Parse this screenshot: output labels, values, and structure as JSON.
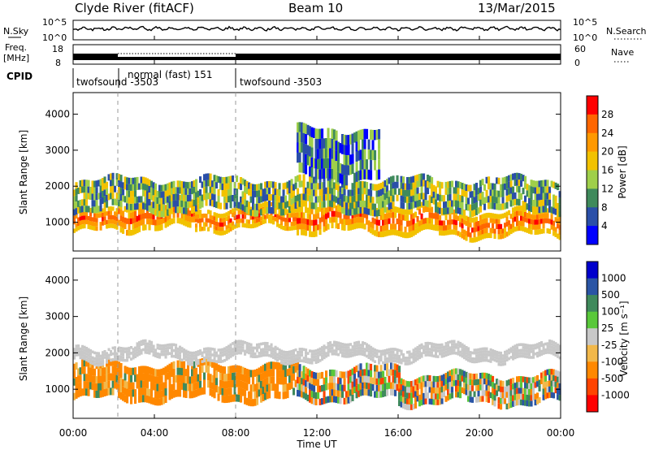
{
  "header": {
    "station": "Clyde River (fitACF)",
    "beam": "Beam 10",
    "date": "13/Mar/2015"
  },
  "top_strip": {
    "left_label": "N.Sky",
    "right_label": "N.Search",
    "scale_top": "10^5",
    "scale_bottom": "10^0"
  },
  "freq_strip": {
    "left_label_1": "Freq.",
    "left_label_2": "[MHz]",
    "left_ticks": [
      "18",
      "8"
    ],
    "right_label": "Nave",
    "right_ticks": [
      "60",
      "0"
    ]
  },
  "cpid": {
    "label": "CPID",
    "segments": [
      {
        "text": "twofsound -3503",
        "start_hour": 0
      },
      {
        "text": "normal (fast) 151",
        "start_hour": 2.2
      },
      {
        "text": "twofsound -3503",
        "start_hour": 8.0
      }
    ]
  },
  "colors": {
    "power_scale": [
      "#0000ff",
      "#2a4fa8",
      "#3f8a5c",
      "#9fcf4a",
      "#f2c200",
      "#ff9900",
      "#ff6600",
      "#ff0000"
    ],
    "velocity_scale": [
      "#0000cc",
      "#2a55a5",
      "#3f8a5c",
      "#59c83a",
      "#c8c8c8",
      "#f2b84a",
      "#ff8800",
      "#ff4400",
      "#ff0000"
    ]
  },
  "chart_data": [
    {
      "type": "heatmap",
      "name": "power",
      "xlabel": "",
      "ylabel": "Slant Range [km]",
      "x_ticks": [
        "00:00",
        "04:00",
        "08:00",
        "12:00",
        "16:00",
        "20:00",
        "00:00"
      ],
      "x_range_hours": [
        0,
        24
      ],
      "y_ticks": [
        1000,
        2000,
        3000,
        4000
      ],
      "ylim": [
        200,
        4600
      ],
      "colorbar": {
        "label": "Power [dB]",
        "ticks": [
          "4",
          "8",
          "12",
          "16",
          "20",
          "24",
          "28"
        ],
        "range": [
          0,
          32
        ]
      },
      "bands": [
        {
          "hours": [
            0,
            2.2
          ],
          "range_km": [
            700,
            1300
          ],
          "level": "high"
        },
        {
          "hours": [
            2.2,
            6
          ],
          "range_km": [
            800,
            1600
          ],
          "level": "high"
        },
        {
          "hours": [
            6,
            11
          ],
          "range_km": [
            800,
            1400
          ],
          "level": "high"
        },
        {
          "hours": [
            11,
            18
          ],
          "range_km": [
            700,
            1500
          ],
          "level": "high"
        },
        {
          "hours": [
            18,
            24
          ],
          "range_km": [
            600,
            1300
          ],
          "level": "high"
        },
        {
          "hours": [
            0,
            24
          ],
          "range_km": [
            1300,
            2200
          ],
          "level": "medium"
        },
        {
          "hours": [
            11,
            15
          ],
          "range_km": [
            2200,
            3600
          ],
          "level": "low"
        }
      ]
    },
    {
      "type": "heatmap",
      "name": "velocity",
      "xlabel": "Time UT",
      "ylabel": "Slant Range [km]",
      "x_ticks": [
        "00:00",
        "04:00",
        "08:00",
        "12:00",
        "16:00",
        "20:00",
        "00:00"
      ],
      "x_range_hours": [
        0,
        24
      ],
      "y_ticks": [
        1000,
        2000,
        3000,
        4000
      ],
      "ylim": [
        200,
        4600
      ],
      "colorbar": {
        "label": "Velocity [m s⁻¹]",
        "ticks": [
          "1000",
          "500",
          "100",
          "25",
          "-25",
          "-100",
          "-500",
          "-1000"
        ],
        "range": [
          -1000,
          1000
        ]
      },
      "bands": [
        {
          "hours": [
            0,
            11
          ],
          "range_km": [
            700,
            1700
          ],
          "level": "-100 to -500"
        },
        {
          "hours": [
            11,
            16
          ],
          "range_km": [
            700,
            1600
          ],
          "level": "mixed"
        },
        {
          "hours": [
            16,
            24
          ],
          "range_km": [
            600,
            1400
          ],
          "level": "mixed"
        },
        {
          "hours": [
            0,
            24
          ],
          "range_km": [
            1800,
            2200
          ],
          "level": "-25 to 25"
        }
      ]
    }
  ]
}
